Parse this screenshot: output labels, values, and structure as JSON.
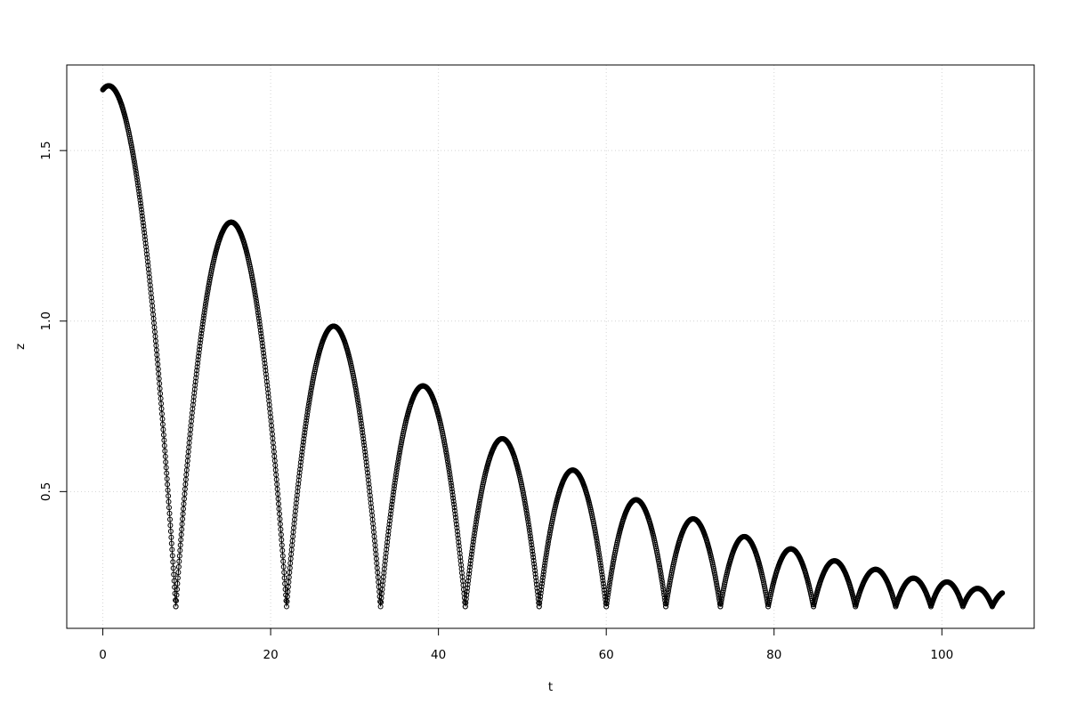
{
  "chart_data": {
    "type": "scatter",
    "title": "",
    "axes": {
      "xlabel": "t",
      "ylabel": "z",
      "xlim": [
        -4.3,
        111.0
      ],
      "ylim": [
        0.099,
        1.751
      ],
      "x_ticks": [
        {
          "v": 0,
          "label": "0"
        },
        {
          "v": 20,
          "label": "20"
        },
        {
          "v": 40,
          "label": "40"
        },
        {
          "v": 60,
          "label": "60"
        },
        {
          "v": 80,
          "label": "80"
        },
        {
          "v": 100,
          "label": "100"
        }
      ],
      "y_ticks": [
        {
          "v": 0.5,
          "label": "0.5"
        },
        {
          "v": 1.0,
          "label": "1.0"
        },
        {
          "v": 1.5,
          "label": "1.5"
        }
      ]
    },
    "legend": null,
    "grid": {
      "visible": true,
      "style": "dotted",
      "at_x": [
        0,
        20,
        40,
        60,
        80,
        100
      ],
      "at_y": [
        0.5,
        1.0,
        1.5
      ]
    },
    "marker": "open-circle",
    "line_between_points": true,
    "floor_z": 0.163,
    "start_point": {
      "t": 0,
      "z": 1.69
    },
    "end_point": {
      "t": 107.2,
      "z": 0.2
    },
    "sampling": {
      "t_start": 0,
      "t_end": 107.2,
      "dt": 0.05
    },
    "bounce_times": [
      8.7,
      21.9,
      33.1,
      43.2,
      52.0,
      60.0,
      67.1,
      73.6,
      79.3,
      84.7,
      89.7,
      94.5,
      98.7,
      102.5,
      106.0
    ],
    "peaks": [
      {
        "t": 0.7,
        "z": 1.69
      },
      {
        "t": 15.3,
        "z": 1.29
      },
      {
        "t": 27.5,
        "z": 0.985
      },
      {
        "t": 38.15,
        "z": 0.81
      },
      {
        "t": 47.6,
        "z": 0.655
      },
      {
        "t": 56.0,
        "z": 0.563
      },
      {
        "t": 63.55,
        "z": 0.476
      },
      {
        "t": 70.35,
        "z": 0.42
      },
      {
        "t": 76.45,
        "z": 0.368
      },
      {
        "t": 82.0,
        "z": 0.332
      },
      {
        "t": 87.2,
        "z": 0.297
      },
      {
        "t": 92.1,
        "z": 0.272
      },
      {
        "t": 96.6,
        "z": 0.246
      },
      {
        "t": 100.6,
        "z": 0.235
      },
      {
        "t": 104.25,
        "z": 0.216
      }
    ],
    "arcs": [
      {
        "t0": 0.0,
        "t1": 8.7,
        "apex_t": 0.7,
        "apex_z": 1.69
      },
      {
        "t0": 8.7,
        "t1": 21.9,
        "apex_t": 15.3,
        "apex_z": 1.29
      },
      {
        "t0": 21.9,
        "t1": 33.1,
        "apex_t": 27.5,
        "apex_z": 0.985
      },
      {
        "t0": 33.1,
        "t1": 43.2,
        "apex_t": 38.15,
        "apex_z": 0.81
      },
      {
        "t0": 43.2,
        "t1": 52.0,
        "apex_t": 47.6,
        "apex_z": 0.655
      },
      {
        "t0": 52.0,
        "t1": 60.0,
        "apex_t": 56.0,
        "apex_z": 0.563
      },
      {
        "t0": 60.0,
        "t1": 67.1,
        "apex_t": 63.55,
        "apex_z": 0.476
      },
      {
        "t0": 67.1,
        "t1": 73.6,
        "apex_t": 70.35,
        "apex_z": 0.42
      },
      {
        "t0": 73.6,
        "t1": 79.3,
        "apex_t": 76.45,
        "apex_z": 0.368
      },
      {
        "t0": 79.3,
        "t1": 84.7,
        "apex_t": 82.0,
        "apex_z": 0.332
      },
      {
        "t0": 84.7,
        "t1": 89.7,
        "apex_t": 87.2,
        "apex_z": 0.297
      },
      {
        "t0": 89.7,
        "t1": 94.5,
        "apex_t": 92.1,
        "apex_z": 0.272
      },
      {
        "t0": 94.5,
        "t1": 98.7,
        "apex_t": 96.6,
        "apex_z": 0.246
      },
      {
        "t0": 98.7,
        "t1": 102.5,
        "apex_t": 100.6,
        "apex_z": 0.235
      },
      {
        "t0": 102.5,
        "t1": 106.0,
        "apex_t": 104.25,
        "apex_z": 0.216
      },
      {
        "t0": 106.0,
        "t1": 109.6,
        "apex_t": 107.8,
        "apex_z": 0.208
      }
    ],
    "colors": {
      "marker": "#000000",
      "line": "#000000",
      "grid": "#d4d4d4",
      "axis": "#000000",
      "background": "#ffffff"
    }
  }
}
